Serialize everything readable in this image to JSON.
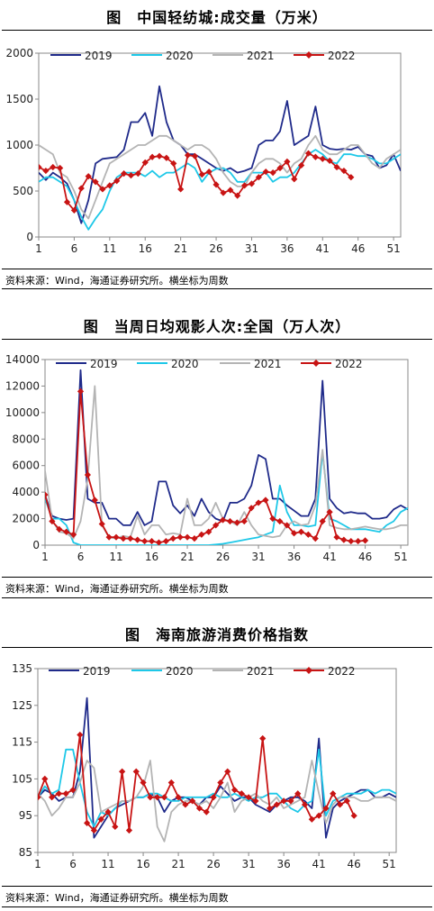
{
  "charts": [
    {
      "title": "图　中国轻纺城:成交量（万米）",
      "source": "资料来源：Wind，海通证券研究所。横坐标为周数"
    },
    {
      "title": "图　当周日均观影人次:全国（万人次）",
      "source": "资料来源：Wind，海通证券研究所。横坐标为周数"
    },
    {
      "title": "图　海南旅游消费价格指数",
      "source": "资料来源：Wind，海通证券研究所。横坐标为周数"
    }
  ],
  "chart_data": [
    {
      "type": "line",
      "title": "图　中国轻纺城:成交量（万米）",
      "xlim": [
        1,
        52
      ],
      "ylim": [
        0,
        2000
      ],
      "x_ticks": [
        1,
        6,
        11,
        16,
        21,
        26,
        31,
        36,
        41,
        46,
        51
      ],
      "y_ticks": [
        0,
        500,
        1000,
        1500,
        2000
      ],
      "legend_position": "top",
      "series": [
        {
          "name": "2019",
          "color": "#1f2a8a",
          "marker": "none",
          "values": [
            700,
            620,
            700,
            650,
            580,
            400,
            150,
            400,
            800,
            850,
            860,
            870,
            950,
            1250,
            1250,
            1350,
            1100,
            1640,
            1250,
            1050,
            1000,
            900,
            900,
            850,
            800,
            750,
            720,
            750,
            700,
            720,
            750,
            1000,
            1050,
            1050,
            1150,
            1480,
            1000,
            1050,
            1100,
            1420,
            1000,
            960,
            950,
            960,
            950,
            980,
            900,
            880,
            750,
            780,
            900,
            720
          ]
        },
        {
          "name": "2020",
          "color": "#1ec8e8",
          "marker": "none",
          "values": [
            600,
            650,
            650,
            600,
            550,
            400,
            220,
            80,
            200,
            300,
            500,
            650,
            700,
            700,
            700,
            660,
            720,
            650,
            700,
            700,
            750,
            800,
            750,
            600,
            700,
            740,
            750,
            700,
            600,
            600,
            700,
            700,
            700,
            600,
            650,
            650,
            700,
            800,
            900,
            950,
            900,
            820,
            800,
            900,
            900,
            880,
            880,
            850,
            800,
            800,
            850,
            900
          ]
        },
        {
          "name": "2021",
          "color": "#b4b4b4",
          "marker": "none",
          "values": [
            1000,
            950,
            900,
            700,
            650,
            500,
            300,
            200,
            400,
            600,
            800,
            850,
            900,
            950,
            1000,
            1000,
            1050,
            1100,
            1100,
            1050,
            1000,
            950,
            1000,
            1000,
            950,
            850,
            700,
            600,
            550,
            550,
            700,
            800,
            850,
            850,
            800,
            700,
            800,
            850,
            1000,
            1100,
            950,
            900,
            900,
            950,
            1000,
            1000,
            900,
            800,
            750,
            850,
            900,
            950
          ]
        },
        {
          "name": "2022",
          "color": "#c81414",
          "marker": "diamond",
          "values": [
            760,
            720,
            760,
            750,
            380,
            290,
            530,
            660,
            600,
            520,
            560,
            610,
            690,
            670,
            690,
            810,
            870,
            880,
            860,
            800,
            520,
            890,
            880,
            680,
            710,
            570,
            480,
            510,
            450,
            560,
            580,
            650,
            710,
            700,
            750,
            820,
            630,
            780,
            910,
            870,
            850,
            830,
            760,
            720,
            650
          ]
        }
      ]
    },
    {
      "type": "line",
      "title": "图　当周日均观影人次:全国（万人次）",
      "xlim": [
        1,
        52
      ],
      "ylim": [
        0,
        14000
      ],
      "x_ticks": [
        1,
        6,
        11,
        16,
        21,
        26,
        31,
        36,
        41,
        46,
        51
      ],
      "y_ticks": [
        0,
        2000,
        4000,
        6000,
        8000,
        10000,
        12000,
        14000
      ],
      "legend_position": "top",
      "series": [
        {
          "name": "2019",
          "color": "#1f2a8a",
          "marker": "none",
          "values": [
            3800,
            2200,
            2000,
            1900,
            2000,
            13200,
            3500,
            3200,
            3200,
            2000,
            2000,
            1500,
            1500,
            2500,
            1500,
            1800,
            4800,
            4800,
            3000,
            2400,
            3000,
            2200,
            3500,
            2500,
            2000,
            1800,
            3200,
            3200,
            3500,
            4500,
            6800,
            6500,
            3500,
            3500,
            3000,
            2600,
            2200,
            2200,
            3500,
            12400,
            3500,
            2800,
            2400,
            2500,
            2400,
            2400,
            2000,
            2000,
            2100,
            2700,
            3000,
            2700
          ]
        },
        {
          "name": "2020",
          "color": "#1ec8e8",
          "marker": "none",
          "values": [
            3500,
            2000,
            2000,
            1500,
            200,
            0,
            0,
            0,
            0,
            0,
            0,
            0,
            0,
            0,
            0,
            0,
            0,
            0,
            0,
            0,
            0,
            0,
            0,
            0,
            50,
            100,
            200,
            300,
            400,
            500,
            600,
            800,
            1000,
            4500,
            2500,
            1500,
            1500,
            1400,
            1500,
            7000,
            2000,
            1800,
            1500,
            1200,
            1200,
            1200,
            1100,
            1000,
            1500,
            1800,
            2500,
            2800
          ]
        },
        {
          "name": "2021",
          "color": "#b4b4b4",
          "marker": "none",
          "values": [
            5600,
            1900,
            1000,
            900,
            500,
            1800,
            5000,
            12000,
            1500,
            600,
            500,
            700,
            600,
            2200,
            800,
            1500,
            1500,
            800,
            900,
            800,
            3500,
            1500,
            1500,
            2000,
            3200,
            2000,
            1800,
            1500,
            2500,
            1500,
            800,
            700,
            600,
            700,
            1500,
            1800,
            1500,
            1600,
            3000,
            7200,
            1500,
            1300,
            1200,
            1200,
            1300,
            1400,
            1300,
            1200,
            1200,
            1300,
            1500,
            1500
          ]
        },
        {
          "name": "2022",
          "color": "#c81414",
          "marker": "diamond",
          "values": [
            3800,
            1800,
            1200,
            1000,
            800,
            11600,
            5300,
            3400,
            1600,
            600,
            600,
            500,
            500,
            400,
            300,
            300,
            200,
            300,
            500,
            600,
            600,
            500,
            800,
            1000,
            1500,
            1900,
            1800,
            1700,
            1800,
            2800,
            3200,
            3400,
            2000,
            1800,
            1500,
            900,
            1000,
            800,
            500,
            1800,
            2500,
            600,
            400,
            300,
            300,
            350
          ]
        }
      ]
    },
    {
      "type": "line",
      "title": "图　海南旅游消费价格指数",
      "xlim": [
        1,
        52
      ],
      "ylim": [
        85,
        135
      ],
      "x_ticks": [
        1,
        6,
        11,
        16,
        21,
        26,
        31,
        36,
        41,
        46,
        51
      ],
      "y_ticks": [
        85,
        95,
        105,
        115,
        125,
        135
      ],
      "legend_position": "top",
      "series": [
        {
          "name": "2019",
          "color": "#1f2a8a",
          "marker": "none",
          "values": [
            100,
            102,
            101,
            99,
            100,
            100,
            107,
            127,
            89,
            92,
            95,
            97,
            98,
            99,
            100,
            100,
            101,
            100,
            96,
            99,
            100,
            100,
            99,
            98,
            100,
            100,
            103,
            101,
            99,
            100,
            100,
            98,
            97,
            96,
            98,
            99,
            100,
            100,
            99,
            97,
            116,
            89,
            97,
            99,
            100,
            101,
            102,
            102,
            100,
            100,
            101,
            100
          ]
        },
        {
          "name": "2020",
          "color": "#1ec8e8",
          "marker": "none",
          "values": [
            100,
            103,
            101,
            102,
            113,
            113,
            104,
            96,
            92,
            96,
            95,
            97,
            99,
            99,
            100,
            100,
            101,
            101,
            100,
            99,
            99,
            100,
            100,
            100,
            100,
            101,
            100,
            100,
            101,
            100,
            99,
            100,
            100,
            101,
            101,
            99,
            97,
            96,
            98,
            99,
            113,
            95,
            99,
            100,
            101,
            101,
            101,
            102,
            101,
            102,
            102,
            101
          ]
        },
        {
          "name": "2021",
          "color": "#b4b4b4",
          "marker": "none",
          "values": [
            101,
            99,
            95,
            97,
            100,
            100,
            104,
            110,
            108,
            96,
            97,
            98,
            99,
            99,
            100,
            103,
            110,
            92,
            88,
            96,
            98,
            99,
            99,
            98,
            99,
            97,
            100,
            104,
            96,
            99,
            100,
            101,
            99,
            98,
            100,
            97,
            98,
            99,
            100,
            110,
            101,
            93,
            98,
            100,
            100,
            100,
            99,
            99,
            100,
            100,
            100,
            99
          ]
        },
        {
          "name": "2022",
          "color": "#c81414",
          "marker": "diamond",
          "values": [
            100,
            105,
            100,
            101,
            101,
            102,
            117,
            93,
            91,
            94,
            96,
            92,
            107,
            91,
            107,
            104,
            100,
            100,
            100,
            104,
            100,
            98,
            99,
            97,
            96,
            100,
            104,
            107,
            102,
            101,
            100,
            99,
            116,
            97,
            98,
            99,
            99,
            101,
            98,
            94,
            95,
            97,
            101,
            98,
            99,
            95
          ]
        }
      ]
    }
  ]
}
